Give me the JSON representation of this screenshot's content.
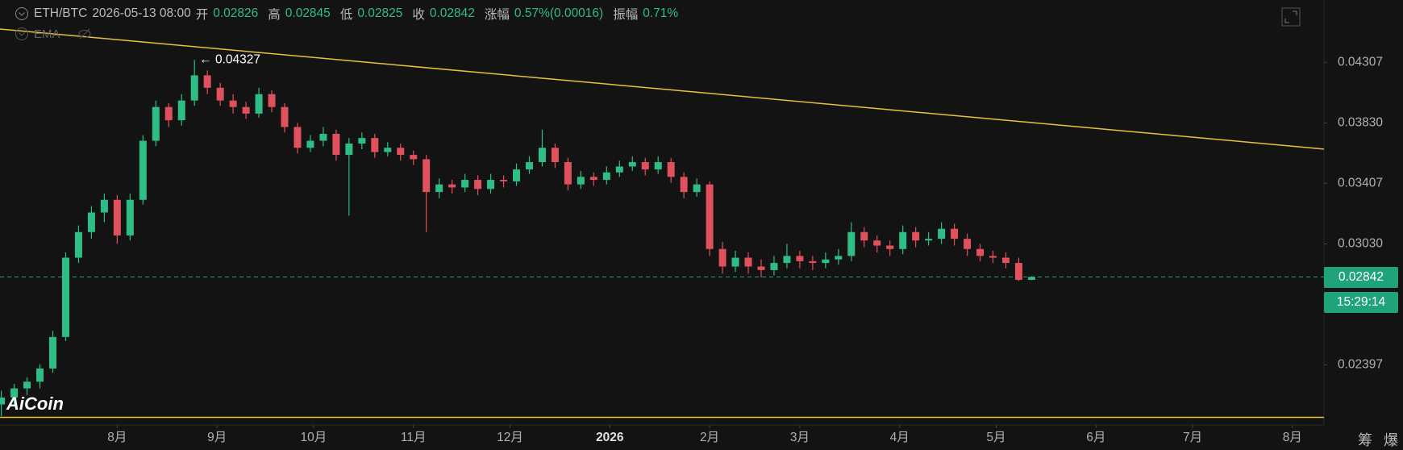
{
  "header": {
    "symbol": "ETH/BTC",
    "datetime": "2026-05-13 08:00",
    "open_label": "开",
    "open": "0.02826",
    "high_label": "高",
    "high": "0.02845",
    "low_label": "低",
    "low": "0.02825",
    "close_label": "收",
    "close": "0.02842",
    "change_label": "涨幅",
    "change": "0.57%(0.00016)",
    "amplitude_label": "振幅",
    "amplitude": "0.71%",
    "indicator": "EMA"
  },
  "countdown": "15:29:14",
  "logo": "AiCoin",
  "buttons": [
    "筹",
    "爆"
  ],
  "chart_data": {
    "type": "candlestick",
    "candles": [
      [
        0.0222,
        0.0228,
        0.0217,
        0.0225
      ],
      [
        0.0225,
        0.0231,
        0.0222,
        0.0229
      ],
      [
        0.0229,
        0.0234,
        0.0226,
        0.0232
      ],
      [
        0.0232,
        0.024,
        0.0229,
        0.0238
      ],
      [
        0.0238,
        0.0256,
        0.0236,
        0.0253
      ],
      [
        0.0253,
        0.0298,
        0.0251,
        0.0295
      ],
      [
        0.0295,
        0.0314,
        0.0292,
        0.031
      ],
      [
        0.031,
        0.0326,
        0.0306,
        0.0322
      ],
      [
        0.0322,
        0.0334,
        0.0316,
        0.033
      ],
      [
        0.033,
        0.0333,
        0.0303,
        0.0308
      ],
      [
        0.0308,
        0.0334,
        0.0305,
        0.033
      ],
      [
        0.033,
        0.0374,
        0.0327,
        0.037
      ],
      [
        0.037,
        0.04,
        0.0366,
        0.0395
      ],
      [
        0.0395,
        0.0398,
        0.038,
        0.0385
      ],
      [
        0.0385,
        0.0405,
        0.0381,
        0.04
      ],
      [
        0.04,
        0.04327,
        0.0396,
        0.042
      ],
      [
        0.042,
        0.0424,
        0.0405,
        0.041
      ],
      [
        0.041,
        0.0414,
        0.0396,
        0.04
      ],
      [
        0.04,
        0.0405,
        0.039,
        0.0395
      ],
      [
        0.0395,
        0.0399,
        0.0386,
        0.039
      ],
      [
        0.039,
        0.041,
        0.0387,
        0.0405
      ],
      [
        0.0405,
        0.0408,
        0.0391,
        0.0395
      ],
      [
        0.0395,
        0.0398,
        0.0376,
        0.038
      ],
      [
        0.038,
        0.0383,
        0.0361,
        0.0365
      ],
      [
        0.0365,
        0.0374,
        0.0362,
        0.037
      ],
      [
        0.037,
        0.038,
        0.0366,
        0.0375
      ],
      [
        0.0375,
        0.0378,
        0.0356,
        0.036
      ],
      [
        0.036,
        0.0372,
        0.032,
        0.0368
      ],
      [
        0.0368,
        0.0376,
        0.0364,
        0.0372
      ],
      [
        0.0372,
        0.0375,
        0.0358,
        0.0362
      ],
      [
        0.0362,
        0.0369,
        0.0359,
        0.0365
      ],
      [
        0.0365,
        0.0368,
        0.0356,
        0.036
      ],
      [
        0.036,
        0.0363,
        0.0353,
        0.0357
      ],
      [
        0.0357,
        0.036,
        0.031,
        0.0335
      ],
      [
        0.0335,
        0.0344,
        0.0331,
        0.034
      ],
      [
        0.034,
        0.0343,
        0.0334,
        0.0338
      ],
      [
        0.0338,
        0.0347,
        0.0335,
        0.0343
      ],
      [
        0.0343,
        0.0346,
        0.0333,
        0.0337
      ],
      [
        0.0337,
        0.0347,
        0.0334,
        0.0343
      ],
      [
        0.0343,
        0.0346,
        0.0338,
        0.0342
      ],
      [
        0.0342,
        0.0354,
        0.0339,
        0.035
      ],
      [
        0.035,
        0.0359,
        0.0347,
        0.0355
      ],
      [
        0.0355,
        0.0378,
        0.0352,
        0.0365
      ],
      [
        0.0365,
        0.0368,
        0.0351,
        0.0355
      ],
      [
        0.0355,
        0.0358,
        0.0336,
        0.034
      ],
      [
        0.034,
        0.0349,
        0.0337,
        0.0345
      ],
      [
        0.0345,
        0.0348,
        0.0339,
        0.0343
      ],
      [
        0.0343,
        0.0352,
        0.034,
        0.0348
      ],
      [
        0.0348,
        0.0356,
        0.0345,
        0.0352
      ],
      [
        0.0352,
        0.0359,
        0.0349,
        0.0355
      ],
      [
        0.0355,
        0.0358,
        0.0346,
        0.035
      ],
      [
        0.035,
        0.0359,
        0.0347,
        0.0355
      ],
      [
        0.0355,
        0.0358,
        0.0341,
        0.0345
      ],
      [
        0.0345,
        0.0348,
        0.0331,
        0.0335
      ],
      [
        0.0335,
        0.0344,
        0.0332,
        0.034
      ],
      [
        0.034,
        0.0342,
        0.0296,
        0.03
      ],
      [
        0.03,
        0.0304,
        0.0286,
        0.029
      ],
      [
        0.029,
        0.0299,
        0.0287,
        0.0295
      ],
      [
        0.0295,
        0.0298,
        0.0286,
        0.029
      ],
      [
        0.029,
        0.0294,
        0.0284,
        0.0288
      ],
      [
        0.0288,
        0.0296,
        0.0285,
        0.0292
      ],
      [
        0.0292,
        0.0303,
        0.0289,
        0.0296
      ],
      [
        0.0296,
        0.0299,
        0.0289,
        0.0293
      ],
      [
        0.0293,
        0.0296,
        0.0288,
        0.0292
      ],
      [
        0.0292,
        0.0298,
        0.0289,
        0.0294
      ],
      [
        0.0294,
        0.03,
        0.0291,
        0.0296
      ],
      [
        0.0296,
        0.0316,
        0.0293,
        0.031
      ],
      [
        0.031,
        0.0313,
        0.0301,
        0.0305
      ],
      [
        0.0305,
        0.0308,
        0.0298,
        0.0302
      ],
      [
        0.0302,
        0.0305,
        0.0296,
        0.03
      ],
      [
        0.03,
        0.0314,
        0.0297,
        0.031
      ],
      [
        0.031,
        0.0313,
        0.0301,
        0.0305
      ],
      [
        0.0305,
        0.031,
        0.0302,
        0.0306
      ],
      [
        0.0306,
        0.0316,
        0.0303,
        0.0312
      ],
      [
        0.0312,
        0.0315,
        0.0302,
        0.0306
      ],
      [
        0.0306,
        0.0309,
        0.0296,
        0.03
      ],
      [
        0.03,
        0.0303,
        0.0293,
        0.0296
      ],
      [
        0.0296,
        0.0299,
        0.0292,
        0.0295
      ],
      [
        0.0295,
        0.0298,
        0.0289,
        0.0292
      ],
      [
        0.0292,
        0.0295,
        0.0282,
        0.02826
      ],
      [
        0.02826,
        0.02845,
        0.02825,
        0.02842
      ]
    ],
    "up_color": "#2ebd85",
    "down_color": "#e0505d",
    "log_scale": true,
    "ylim": [
      0.0215,
      0.0486
    ],
    "yticks": [
      0.02397,
      {
        "value": 0.0303,
        "label": "0.03030"
      },
      0.03407,
      {
        "value": 0.0383,
        "label": "0.03830"
      },
      0.04307
    ],
    "xlim": [
      -0.1,
      102.7
    ],
    "xticks": [
      {
        "value": 9,
        "label": "8月"
      },
      {
        "value": 16.75,
        "label": "9月"
      },
      {
        "value": 24.25,
        "label": "10月"
      },
      {
        "value": 32,
        "label": "11月"
      },
      {
        "value": 39.5,
        "label": "12月"
      },
      {
        "value": 47.25,
        "label": "2026"
      },
      {
        "value": 55,
        "label": "2月"
      },
      {
        "value": 62,
        "label": "3月"
      },
      {
        "value": 69.75,
        "label": "4月"
      },
      {
        "value": 77.25,
        "label": "5月"
      },
      {
        "value": 85,
        "label": "6月"
      },
      {
        "value": 92.5,
        "label": "7月"
      },
      {
        "value": 100.25,
        "label": "8月"
      }
    ],
    "annotation": "← 0.04327",
    "trend_line": {
      "start": 0.04594,
      "end": 0.03641,
      "color": "#e8c33a"
    },
    "support_line": {
      "value": 0.02165,
      "color": "#e8c33a"
    },
    "last_price_color": "#1fa37a"
  }
}
